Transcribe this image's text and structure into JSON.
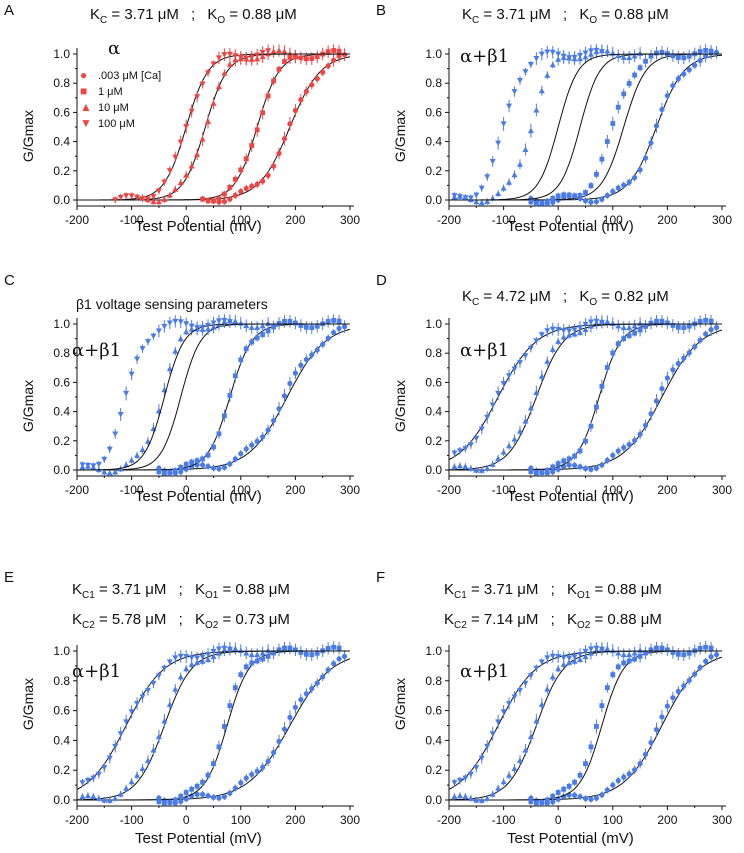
{
  "colors": {
    "red": "#ee4444",
    "blue": "#4a7be8",
    "fit": "#111111"
  },
  "legend": [
    {
      "symbol": "●",
      "label": ".003 μM [Ca]"
    },
    {
      "symbol": "■",
      "label": "1 μM"
    },
    {
      "symbol": "▲",
      "label": "10 μM"
    },
    {
      "symbol": "▼",
      "label": "100 μM"
    }
  ],
  "chart_data": [
    {
      "panel": "A",
      "type": "scatter",
      "color": "red",
      "title": "α",
      "header": {
        "kc_label": "K",
        "kc_sub": "C",
        "kc_value": "= 3.71 μM",
        "sep": ";",
        "ko_label": "K",
        "ko_sub": "O",
        "ko_value": "= 0.88 μM"
      },
      "xlabel": "Test Potential (mV)",
      "ylabel": "G/Gmax",
      "xlim": [
        -200,
        300
      ],
      "ylim": [
        0,
        1
      ],
      "xticks": [
        "-200",
        "-100",
        "0",
        "100",
        "200",
        "300"
      ],
      "yticks": [
        "0.0",
        "0.2",
        "0.4",
        "0.6",
        "0.8",
        "1.0"
      ],
      "series": [
        {
          "name": ".003 μM",
          "v_half": 190,
          "slope": 28,
          "data_shift": 0,
          "x_range": [
            60,
            290
          ],
          "fit_range": [
            -200,
            300
          ]
        },
        {
          "name": "1 μM",
          "v_half": 130,
          "slope": 20,
          "data_shift": 0,
          "x_range": [
            30,
            280
          ],
          "fit_range": [
            -200,
            300
          ]
        },
        {
          "name": "10 μM",
          "v_half": 35,
          "slope": 20,
          "data_shift": 0,
          "x_range": [
            -80,
            200
          ],
          "fit_range": [
            -200,
            300
          ]
        },
        {
          "name": "100 μM",
          "v_half": 0,
          "slope": 20,
          "data_shift": 0,
          "x_range": [
            -130,
            150
          ],
          "fit_range": [
            -200,
            300
          ]
        }
      ]
    },
    {
      "panel": "B",
      "type": "scatter",
      "color": "blue",
      "title": "α+β1",
      "header": {
        "kc_label": "K",
        "kc_sub": "C",
        "kc_value": "= 3.71 μM",
        "sep": ";",
        "ko_label": "K",
        "ko_sub": "O",
        "ko_value": "= 0.88 μM"
      },
      "xlabel": "Test Potential (mV)",
      "ylabel": "G/Gmax",
      "xlim": [
        -200,
        300
      ],
      "ylim": [
        0,
        1
      ],
      "xticks": [
        "-200",
        "-100",
        "0",
        "100",
        "200",
        "300"
      ],
      "yticks": [
        "0.0",
        "0.2",
        "0.4",
        "0.6",
        "0.8",
        "1.0"
      ],
      "series": [
        {
          "name": ".003 μM",
          "v_half": 180,
          "slope": 25,
          "data_shift": 0,
          "x_range": [
            -50,
            290
          ],
          "fit_range": [
            -200,
            300
          ]
        },
        {
          "name": "1 μM",
          "v_half": 120,
          "slope": 20,
          "data_shift": -20,
          "x_range": [
            -50,
            280
          ],
          "fit_range": [
            -200,
            300
          ]
        },
        {
          "name": "10 μM",
          "v_half": 40,
          "slope": 18,
          "data_shift": -90,
          "x_range": [
            -190,
            150
          ],
          "fit_range": [
            -200,
            300
          ]
        },
        {
          "name": "100 μM",
          "v_half": 0,
          "slope": 18,
          "data_shift": -100,
          "x_range": [
            -190,
            80
          ],
          "fit_range": [
            -200,
            300
          ]
        }
      ]
    },
    {
      "panel": "C",
      "type": "scatter",
      "color": "blue",
      "title": "α+β1",
      "subtitle": "β1 voltage sensing parameters",
      "xlabel": "Test Potential (mV)",
      "ylabel": "G/Gmax",
      "xlim": [
        -200,
        300
      ],
      "ylim": [
        0,
        1
      ],
      "xticks": [
        "-200",
        "-100",
        "0",
        "100",
        "200",
        "300"
      ],
      "yticks": [
        "0.0",
        "0.2",
        "0.4",
        "0.6",
        "0.8",
        "1.0"
      ],
      "series": [
        {
          "name": ".003 μM",
          "v_half": 185,
          "slope": 35,
          "data_shift": -5,
          "x_range": [
            -50,
            290
          ],
          "fit_range": [
            -200,
            300
          ]
        },
        {
          "name": "1 μM",
          "v_half": 80,
          "slope": 20,
          "data_shift": 0,
          "x_range": [
            -50,
            280
          ],
          "fit_range": [
            -200,
            300
          ]
        },
        {
          "name": "10 μM",
          "v_half": -10,
          "slope": 18,
          "data_shift": -35,
          "x_range": [
            -190,
            150
          ],
          "fit_range": [
            -200,
            300
          ]
        },
        {
          "name": "100 μM",
          "v_half": -40,
          "slope": 18,
          "data_shift": -70,
          "x_range": [
            -190,
            80
          ],
          "fit_range": [
            -200,
            300
          ]
        }
      ]
    },
    {
      "panel": "D",
      "type": "scatter",
      "color": "blue",
      "title": "α+β1",
      "header": {
        "kc_label": "K",
        "kc_sub": "C",
        "kc_value": "= 4.72 μM",
        "sep": ";",
        "ko_label": "K",
        "ko_sub": "O",
        "ko_value": "= 0.82 μM"
      },
      "xlabel": "Test Potential (mV)",
      "ylabel": "G/Gmax",
      "xlim": [
        -200,
        300
      ],
      "ylim": [
        0,
        1
      ],
      "xticks": [
        "-200",
        "-100",
        "0",
        "100",
        "200",
        "300"
      ],
      "yticks": [
        "0.0",
        "0.2",
        "0.4",
        "0.6",
        "0.8",
        "1.0"
      ],
      "series": [
        {
          "name": ".003 μM",
          "v_half": 190,
          "slope": 35,
          "data_shift": -5,
          "x_range": [
            -50,
            290
          ],
          "fit_range": [
            -200,
            300
          ]
        },
        {
          "name": "1 μM",
          "v_half": 75,
          "slope": 20,
          "data_shift": 0,
          "x_range": [
            -50,
            280
          ],
          "fit_range": [
            -200,
            300
          ]
        },
        {
          "name": "10 μM",
          "v_half": -40,
          "slope": 25,
          "data_shift": -5,
          "x_range": [
            -190,
            150
          ],
          "fit_range": [
            -200,
            300
          ]
        },
        {
          "name": "100 μM",
          "v_half": -110,
          "slope": 35,
          "data_shift": 0,
          "x_range": [
            -190,
            80
          ],
          "fit_range": [
            -200,
            300
          ]
        }
      ]
    },
    {
      "panel": "E",
      "type": "scatter",
      "color": "blue",
      "title": "α+β1",
      "header": {
        "kc_label": "K",
        "kc_sub": "C1",
        "kc_value": "= 3.71 μM",
        "sep": ";",
        "ko_label": "K",
        "ko_sub": "O1",
        "ko_value": "= 0.88 μM"
      },
      "header2": {
        "kc_label": "K",
        "kc_sub": "C2",
        "kc_value": "= 5.78 μM",
        "sep": ";",
        "ko_label": "K",
        "ko_sub": "O2",
        "ko_value": "= 0.73 μM"
      },
      "xlabel": "Test Potential (mV)",
      "ylabel": "G/Gmax",
      "xlim": [
        -200,
        300
      ],
      "ylim": [
        0,
        1
      ],
      "xticks": [
        "-200",
        "-100",
        "0",
        "100",
        "200",
        "300"
      ],
      "yticks": [
        "0.0",
        "0.2",
        "0.4",
        "0.6",
        "0.8",
        "1.0"
      ],
      "series": [
        {
          "name": ".003 μM",
          "v_half": 190,
          "slope": 38,
          "data_shift": -5,
          "x_range": [
            -50,
            290
          ],
          "fit_range": [
            -200,
            300
          ]
        },
        {
          "name": "1 μM",
          "v_half": 75,
          "slope": 20,
          "data_shift": -5,
          "x_range": [
            -50,
            280
          ],
          "fit_range": [
            -200,
            300
          ]
        },
        {
          "name": "10 μM",
          "v_half": -40,
          "slope": 25,
          "data_shift": -5,
          "x_range": [
            -190,
            150
          ],
          "fit_range": [
            -200,
            300
          ]
        },
        {
          "name": "100 μM",
          "v_half": -110,
          "slope": 35,
          "data_shift": 0,
          "x_range": [
            -190,
            80
          ],
          "fit_range": [
            -200,
            300
          ]
        }
      ]
    },
    {
      "panel": "F",
      "type": "scatter",
      "color": "blue",
      "title": "α+β1",
      "header": {
        "kc_label": "K",
        "kc_sub": "C1",
        "kc_value": "= 3.71 μM",
        "sep": ";",
        "ko_label": "K",
        "ko_sub": "O1",
        "ko_value": "= 0.88 μM"
      },
      "header2": {
        "kc_label": "K",
        "kc_sub": "C2",
        "kc_value": "= 7.14 μM",
        "sep": ";",
        "ko_label": "K",
        "ko_sub": "O2",
        "ko_value": "= 0.88 μM"
      },
      "xlabel": "Test Potential (mV)",
      "ylabel": "G/Gmax",
      "xlim": [
        -200,
        300
      ],
      "ylim": [
        0,
        1
      ],
      "xticks": [
        "-200",
        "-100",
        "0",
        "100",
        "200",
        "300"
      ],
      "yticks": [
        "0.0",
        "0.2",
        "0.4",
        "0.6",
        "0.8",
        "1.0"
      ],
      "series": [
        {
          "name": ".003 μM",
          "v_half": 190,
          "slope": 35,
          "data_shift": -5,
          "x_range": [
            -50,
            290
          ],
          "fit_range": [
            -200,
            300
          ]
        },
        {
          "name": "1 μM",
          "v_half": 80,
          "slope": 20,
          "data_shift": -10,
          "x_range": [
            -50,
            280
          ],
          "fit_range": [
            -200,
            300
          ]
        },
        {
          "name": "10 μM",
          "v_half": -40,
          "slope": 25,
          "data_shift": -5,
          "x_range": [
            -190,
            150
          ],
          "fit_range": [
            -200,
            300
          ]
        },
        {
          "name": "100 μM",
          "v_half": -110,
          "slope": 35,
          "data_shift": 0,
          "x_range": [
            -190,
            80
          ],
          "fit_range": [
            -200,
            300
          ]
        }
      ]
    }
  ]
}
